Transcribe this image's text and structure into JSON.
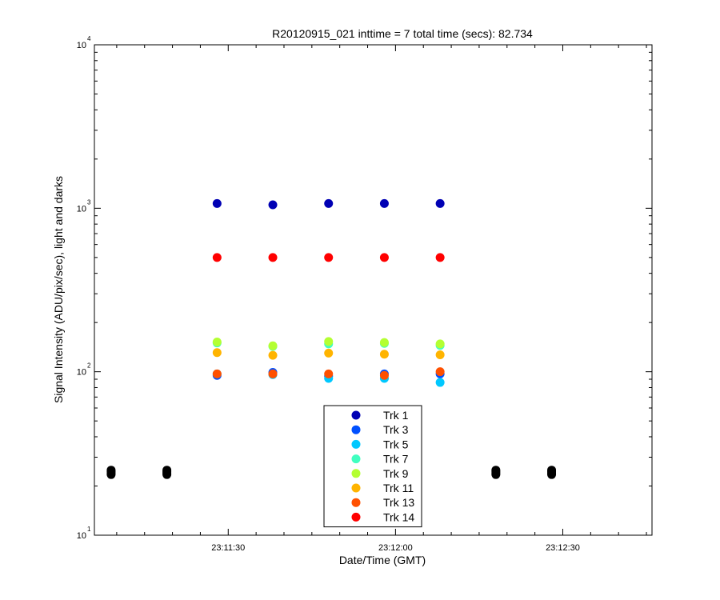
{
  "chart_data": {
    "type": "scatter",
    "title": "R20120915_021 inttime = 7 total time (secs): 82.734",
    "xlabel": "Date/Time (GMT)",
    "ylabel": "Signal Intensity (ADU/pix/sec), light and darks",
    "x_axis": {
      "type": "time",
      "range": [
        "23:11:06",
        "23:12:46"
      ],
      "ticks": [
        "23:11:30",
        "23:12:00",
        "23:12:30"
      ]
    },
    "y_axis": {
      "scale": "log",
      "range": [
        10,
        10000
      ],
      "ticks": [
        {
          "value": 10,
          "base": "10",
          "exponent": "1"
        },
        {
          "value": 100,
          "base": "10",
          "exponent": "2"
        },
        {
          "value": 1000,
          "base": "10",
          "exponent": "3"
        },
        {
          "value": 10000,
          "base": "10",
          "exponent": "4"
        }
      ]
    },
    "legend_position": "bottom-center",
    "grid": false,
    "series": [
      {
        "name": "Trk 1",
        "color": "#0000b4",
        "x": [
          "23:11:28",
          "23:11:38",
          "23:11:48",
          "23:11:58",
          "23:12:08"
        ],
        "y": [
          1070,
          1050,
          1070,
          1070,
          1070
        ]
      },
      {
        "name": "Trk 3",
        "color": "#0050ff",
        "x": [
          "23:11:28",
          "23:11:38",
          "23:11:48",
          "23:11:58",
          "23:12:08"
        ],
        "y": [
          95,
          99,
          94,
          97,
          97
        ]
      },
      {
        "name": "Trk 5",
        "color": "#00c8ff",
        "x": [
          "23:11:28",
          "23:11:38",
          "23:11:48",
          "23:11:58",
          "23:12:08"
        ],
        "y": [
          97,
          96,
          91,
          91,
          86
        ]
      },
      {
        "name": "Trk 7",
        "color": "#40ffc0",
        "x": [
          "23:11:28",
          "23:11:38",
          "23:11:48",
          "23:11:58",
          "23:12:08"
        ],
        "y": [
          150,
          143,
          148,
          149,
          145
        ]
      },
      {
        "name": "Trk 9",
        "color": "#b4ff32",
        "x": [
          "23:11:28",
          "23:11:38",
          "23:11:48",
          "23:11:58",
          "23:12:08"
        ],
        "y": [
          152,
          144,
          153,
          151,
          148
        ]
      },
      {
        "name": "Trk 11",
        "color": "#ffb400",
        "x": [
          "23:11:28",
          "23:11:38",
          "23:11:48",
          "23:11:58",
          "23:12:08"
        ],
        "y": [
          131,
          126,
          130,
          128,
          127
        ]
      },
      {
        "name": "Trk 13",
        "color": "#ff5000",
        "x": [
          "23:11:28",
          "23:11:38",
          "23:11:48",
          "23:11:58",
          "23:12:08"
        ],
        "y": [
          97,
          97,
          97,
          95,
          100
        ]
      },
      {
        "name": "Trk 14",
        "color": "#ff0000",
        "x": [
          "23:11:28",
          "23:11:38",
          "23:11:48",
          "23:11:58",
          "23:12:08"
        ],
        "y": [
          500,
          500,
          500,
          500,
          500
        ]
      }
    ],
    "darks": {
      "color": "#000000",
      "x": [
        "23:11:09",
        "23:11:19",
        "23:12:18",
        "23:12:28"
      ],
      "y_values": [
        23.5,
        24.0,
        24.5,
        25.0
      ]
    }
  }
}
